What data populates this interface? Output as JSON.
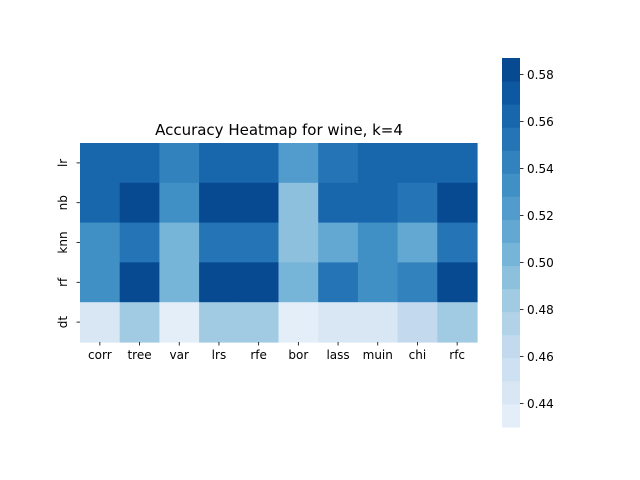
{
  "chart_data": {
    "type": "heatmap",
    "title": "Accuracy Heatmap for wine, k=4",
    "xlabel": "",
    "ylabel": "",
    "x_categories": [
      "corr",
      "tree",
      "var",
      "lrs",
      "rfe",
      "bor",
      "lass",
      "muin",
      "chi",
      "rfc"
    ],
    "y_categories": [
      "lr",
      "nb",
      "knn",
      "rf",
      "dt"
    ],
    "values": [
      [
        0.565,
        0.565,
        0.54,
        0.565,
        0.565,
        0.52,
        0.555,
        0.565,
        0.565,
        0.565
      ],
      [
        0.565,
        0.585,
        0.53,
        0.585,
        0.585,
        0.495,
        0.565,
        0.565,
        0.555,
        0.585
      ],
      [
        0.53,
        0.555,
        0.505,
        0.555,
        0.555,
        0.495,
        0.515,
        0.53,
        0.515,
        0.555
      ],
      [
        0.53,
        0.585,
        0.505,
        0.585,
        0.585,
        0.505,
        0.555,
        0.53,
        0.545,
        0.585
      ],
      [
        0.445,
        0.485,
        0.435,
        0.485,
        0.485,
        0.435,
        0.445,
        0.445,
        0.465,
        0.485
      ]
    ],
    "colorbar": {
      "range": [
        0.43,
        0.587
      ],
      "ticks": [
        "0.44",
        "0.46",
        "0.48",
        "0.50",
        "0.52",
        "0.54",
        "0.56",
        "0.58"
      ],
      "colormap": "Blues",
      "levels": 16,
      "color_low": "#e6eff9",
      "color_high": "#08468c"
    }
  }
}
